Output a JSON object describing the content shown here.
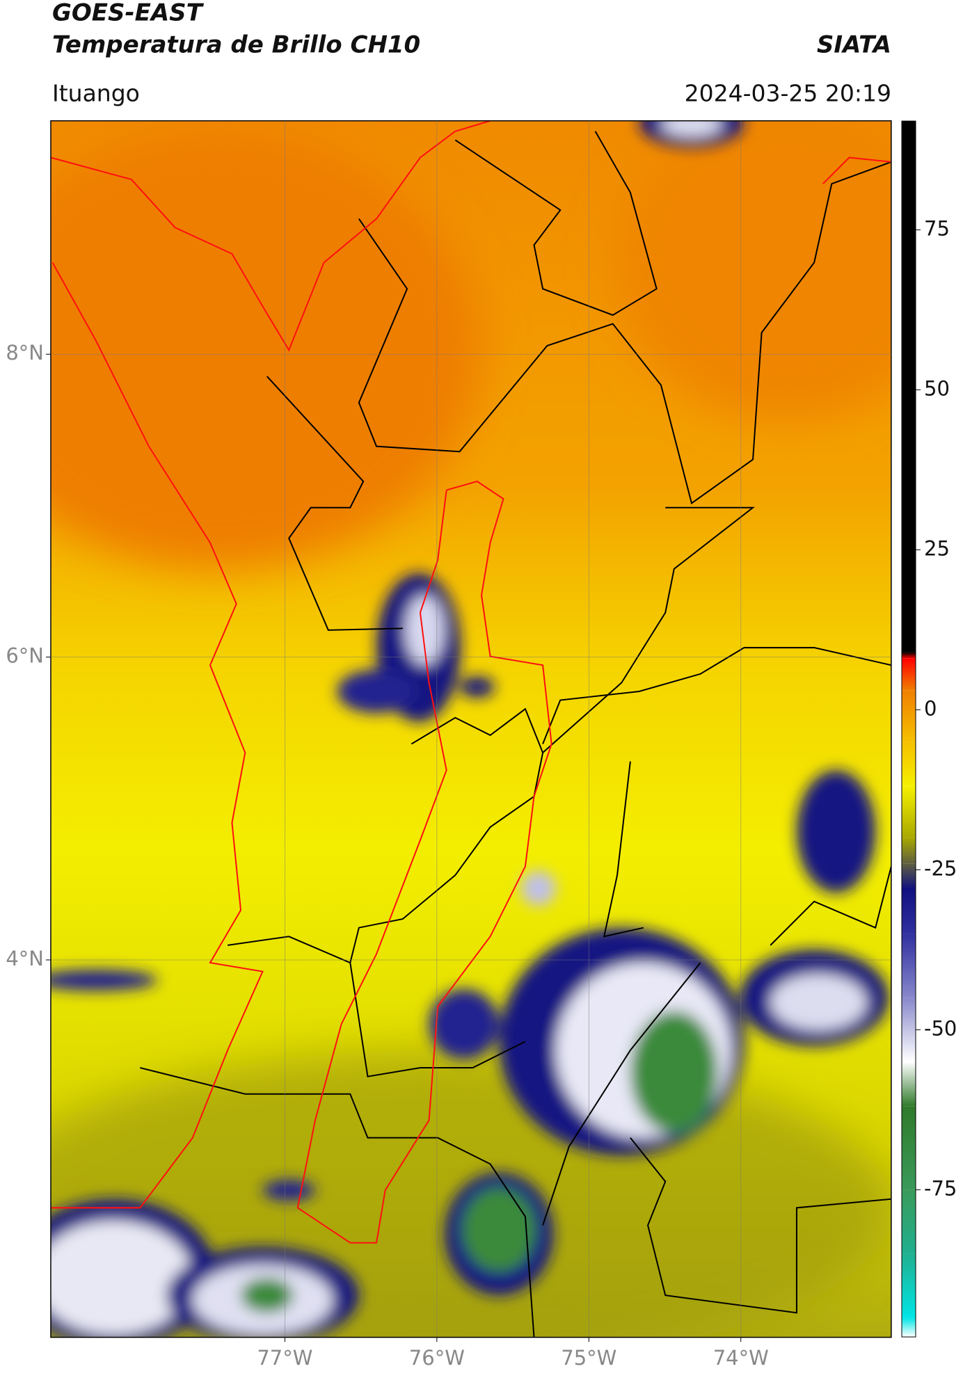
{
  "header": {
    "title": "GOES-EAST",
    "subtitle": "Temperatura de Brillo CH10",
    "source": "SIATA",
    "location": "Ituango",
    "timestamp": "2024-03-25 20:19"
  },
  "map": {
    "xlim": [
      -78.54,
      -73.01
    ],
    "ylim": [
      1.51,
      9.54
    ],
    "xticks": [
      {
        "value": -77,
        "label": "77°W"
      },
      {
        "value": -76,
        "label": "76°W"
      },
      {
        "value": -75,
        "label": "75°W"
      },
      {
        "value": -74,
        "label": "74°W"
      }
    ],
    "yticks": [
      {
        "value": 8,
        "label": "8°N"
      },
      {
        "value": 6,
        "label": "6°N"
      },
      {
        "value": 4,
        "label": "4°N"
      }
    ],
    "grid": true
  },
  "colorbar": {
    "clim": [
      -98,
      92
    ],
    "ticks": [
      75,
      50,
      25,
      0,
      -25,
      -50,
      -75
    ],
    "colormap": [
      {
        "value": -98,
        "color": "#ffffff"
      },
      {
        "value": -95,
        "color": "#00e5e5"
      },
      {
        "value": -85,
        "color": "#20b090"
      },
      {
        "value": -75,
        "color": "#3a9a5a"
      },
      {
        "value": -62,
        "color": "#2f7a2a"
      },
      {
        "value": -55,
        "color": "#ffffff"
      },
      {
        "value": -45,
        "color": "#8888cc"
      },
      {
        "value": -35,
        "color": "#3030a0"
      },
      {
        "value": -28,
        "color": "#101080"
      },
      {
        "value": -24,
        "color": "#606040"
      },
      {
        "value": -20,
        "color": "#a8a800"
      },
      {
        "value": -12,
        "color": "#f5f000"
      },
      {
        "value": -5,
        "color": "#f5c000"
      },
      {
        "value": 3,
        "color": "#f08000"
      },
      {
        "value": 8,
        "color": "#ff0000"
      },
      {
        "value": 9,
        "color": "#000000"
      },
      {
        "value": 92,
        "color": "#000000"
      }
    ]
  }
}
